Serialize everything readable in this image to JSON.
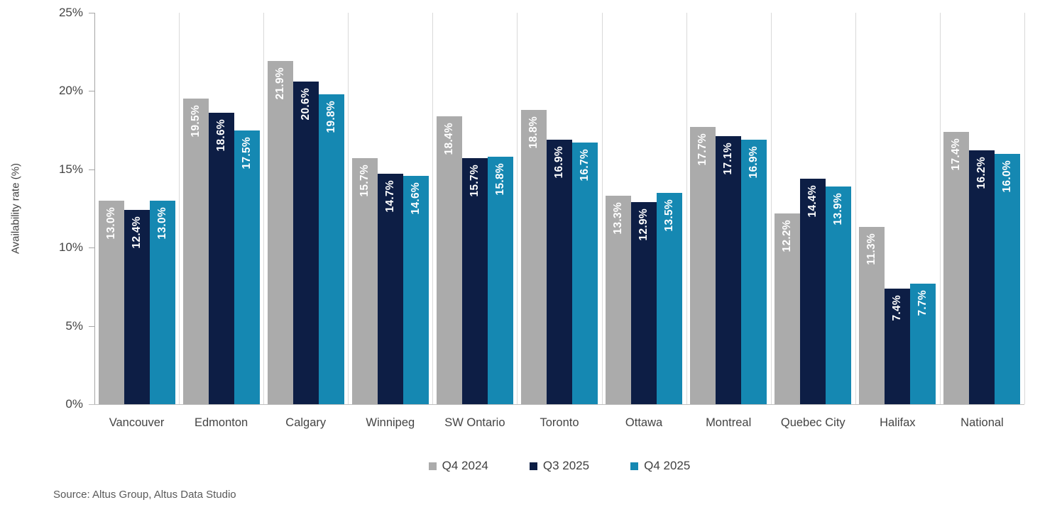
{
  "chart_data": {
    "type": "bar",
    "title": "",
    "ylabel": "Availability rate (%)",
    "xlabel": "",
    "ylim": [
      0,
      25
    ],
    "yticks": [
      0,
      5,
      10,
      15,
      20,
      25
    ],
    "ytick_labels": [
      "0%",
      "5%",
      "10%",
      "15%",
      "20%",
      "25%"
    ],
    "grid": "vertical-group-separators",
    "legend_position": "bottom-center",
    "value_label_suffix": "%",
    "categories": [
      "Vancouver",
      "Edmonton",
      "Calgary",
      "Winnipeg",
      "SW Ontario",
      "Toronto",
      "Ottawa",
      "Montreal",
      "Quebec City",
      "Halifax",
      "National"
    ],
    "series": [
      {
        "name": "Q4 2024",
        "color": "#ababab",
        "values": [
          13.0,
          19.5,
          21.9,
          15.7,
          18.4,
          18.8,
          13.3,
          17.7,
          12.2,
          11.3,
          17.4
        ]
      },
      {
        "name": "Q3 2025",
        "color": "#0d1e45",
        "values": [
          12.4,
          18.6,
          20.6,
          14.7,
          15.7,
          16.9,
          12.9,
          17.1,
          14.4,
          7.4,
          16.2
        ]
      },
      {
        "name": "Q4 2025",
        "color": "#1588b2",
        "values": [
          13.0,
          17.5,
          19.8,
          14.6,
          15.8,
          16.7,
          13.5,
          16.9,
          13.9,
          7.7,
          16.0
        ]
      }
    ]
  },
  "source": {
    "text": "Source: Altus Group, Altus Data Studio"
  },
  "colors": {
    "separator_line": "#d9d9d9",
    "axis_line": "#a6a6a6",
    "baseline": "#bfbfbf",
    "bar_label_text": "#ffffff",
    "axis_text": "#444444",
    "legend_text": "#404040",
    "source_text": "#595959"
  }
}
